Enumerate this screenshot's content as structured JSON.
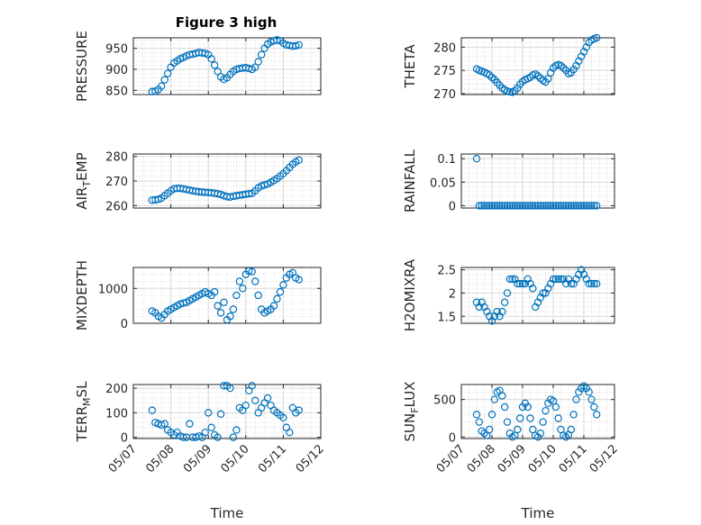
{
  "figure": {
    "title": "Figure 3 high"
  },
  "colors": {
    "marker": "#0072BD"
  },
  "chart_data": [
    {
      "type": "scatter",
      "name": "PRESSURE",
      "title": "Figure 3 high",
      "xlabel": "",
      "ylabel": "PRESSURE",
      "ylim": [
        840,
        975
      ],
      "yticks": [
        850,
        900,
        950
      ],
      "xlim": [
        "05/07",
        "05/12"
      ],
      "x": [
        "05/07 12:00",
        "05/07 14:00",
        "05/07 16:00",
        "05/07 18:00",
        "05/07 20:00",
        "05/07 22:00",
        "05/08 00:00",
        "05/08 02:00",
        "05/08 04:00",
        "05/08 06:00",
        "05/08 08:00",
        "05/08 10:00",
        "05/08 12:00",
        "05/08 14:00",
        "05/08 16:00",
        "05/08 18:00",
        "05/08 20:00",
        "05/08 22:00",
        "05/09 00:00",
        "05/09 02:00",
        "05/09 04:00",
        "05/09 06:00",
        "05/09 08:00",
        "05/09 10:00",
        "05/09 12:00",
        "05/09 14:00",
        "05/09 16:00",
        "05/09 18:00",
        "05/09 20:00",
        "05/09 22:00",
        "05/10 00:00",
        "05/10 02:00",
        "05/10 04:00",
        "05/10 06:00",
        "05/10 08:00",
        "05/10 10:00",
        "05/10 12:00",
        "05/10 14:00",
        "05/10 16:00",
        "05/10 18:00",
        "05/10 20:00",
        "05/10 22:00",
        "05/11 00:00",
        "05/11 02:00",
        "05/11 04:00",
        "05/11 06:00",
        "05/11 08:00",
        "05/11 10:00"
      ],
      "values": [
        847,
        848,
        852,
        860,
        875,
        890,
        905,
        915,
        920,
        925,
        928,
        932,
        935,
        936,
        938,
        940,
        939,
        938,
        935,
        925,
        910,
        895,
        882,
        876,
        880,
        888,
        895,
        900,
        902,
        903,
        904,
        902,
        900,
        905,
        918,
        935,
        950,
        960,
        965,
        968,
        970,
        968,
        962,
        958,
        957,
        955,
        956,
        958
      ]
    },
    {
      "type": "scatter",
      "name": "THETA",
      "title": "",
      "xlabel": "",
      "ylabel": "THETA",
      "ylim": [
        269.8,
        282
      ],
      "yticks": [
        270,
        275,
        280
      ],
      "xlim": [
        "05/07",
        "05/12"
      ],
      "x": [
        "05/07 12:00",
        "05/07 14:00",
        "05/07 16:00",
        "05/07 18:00",
        "05/07 20:00",
        "05/07 22:00",
        "05/08 00:00",
        "05/08 02:00",
        "05/08 04:00",
        "05/08 06:00",
        "05/08 08:00",
        "05/08 10:00",
        "05/08 12:00",
        "05/08 14:00",
        "05/08 16:00",
        "05/08 18:00",
        "05/08 20:00",
        "05/08 22:00",
        "05/09 00:00",
        "05/09 02:00",
        "05/09 04:00",
        "05/09 06:00",
        "05/09 08:00",
        "05/09 10:00",
        "05/09 12:00",
        "05/09 14:00",
        "05/09 16:00",
        "05/09 18:00",
        "05/09 20:00",
        "05/09 22:00",
        "05/10 00:00",
        "05/10 02:00",
        "05/10 04:00",
        "05/10 06:00",
        "05/10 08:00",
        "05/10 10:00",
        "05/10 12:00",
        "05/10 14:00",
        "05/10 16:00",
        "05/10 18:00",
        "05/10 20:00",
        "05/10 22:00",
        "05/11 00:00",
        "05/11 02:00",
        "05/11 04:00",
        "05/11 06:00",
        "05/11 08:00",
        "05/11 10:00"
      ],
      "values": [
        275.3,
        275.0,
        274.8,
        274.6,
        274.3,
        274.0,
        273.5,
        273.0,
        272.4,
        271.8,
        271.2,
        270.8,
        270.5,
        270.4,
        270.3,
        270.6,
        271.2,
        272.0,
        272.6,
        273.0,
        273.2,
        273.5,
        274.0,
        274.2,
        273.8,
        273.3,
        272.8,
        272.5,
        273.2,
        274.5,
        275.5,
        276.0,
        276.2,
        276.0,
        275.5,
        275.0,
        274.3,
        274.5,
        275.2,
        276.0,
        277.0,
        278.0,
        279.0,
        280.0,
        281.0,
        281.5,
        281.8,
        282.0
      ]
    },
    {
      "type": "scatter",
      "name": "AIR_TEMP",
      "title": "",
      "xlabel": "",
      "ylabel": "AIR_TEMP",
      "ylim": [
        259,
        281
      ],
      "yticks": [
        260,
        270,
        280
      ],
      "xlim": [
        "05/07",
        "05/12"
      ],
      "x": [
        "05/07 12:00",
        "05/07 14:00",
        "05/07 16:00",
        "05/07 18:00",
        "05/07 20:00",
        "05/07 22:00",
        "05/08 00:00",
        "05/08 02:00",
        "05/08 04:00",
        "05/08 06:00",
        "05/08 08:00",
        "05/08 10:00",
        "05/08 12:00",
        "05/08 14:00",
        "05/08 16:00",
        "05/08 18:00",
        "05/08 20:00",
        "05/08 22:00",
        "05/09 00:00",
        "05/09 02:00",
        "05/09 04:00",
        "05/09 06:00",
        "05/09 08:00",
        "05/09 10:00",
        "05/09 12:00",
        "05/09 14:00",
        "05/09 16:00",
        "05/09 18:00",
        "05/09 20:00",
        "05/09 22:00",
        "05/10 00:00",
        "05/10 02:00",
        "05/10 04:00",
        "05/10 06:00",
        "05/10 08:00",
        "05/10 10:00",
        "05/10 12:00",
        "05/10 14:00",
        "05/10 16:00",
        "05/10 18:00",
        "05/10 20:00",
        "05/10 22:00",
        "05/11 00:00",
        "05/11 02:00",
        "05/11 04:00",
        "05/11 06:00",
        "05/11 08:00",
        "05/11 10:00"
      ],
      "values": [
        262.2,
        262.3,
        262.5,
        263.0,
        264.0,
        265.0,
        266.0,
        266.8,
        267.0,
        267.0,
        266.8,
        266.5,
        266.3,
        266.0,
        265.8,
        265.6,
        265.5,
        265.4,
        265.3,
        265.2,
        265.0,
        264.8,
        264.5,
        264.0,
        263.6,
        263.5,
        263.8,
        264.0,
        264.2,
        264.4,
        264.6,
        264.8,
        265.0,
        266.0,
        267.2,
        268.0,
        268.4,
        268.8,
        269.5,
        270.2,
        271.0,
        272.0,
        273.0,
        274.2,
        275.5,
        276.8,
        277.8,
        278.5
      ]
    },
    {
      "type": "scatter",
      "name": "RAINFALL",
      "title": "",
      "xlabel": "",
      "ylabel": "RAINFALL",
      "ylim": [
        -0.005,
        0.11
      ],
      "yticks": [
        0,
        0.05,
        0.1
      ],
      "ytick_labels": [
        "0",
        "0.05",
        "0.1"
      ],
      "xlim": [
        "05/07",
        "05/12"
      ],
      "x": [
        "05/07 12:00",
        "05/07 14:00",
        "05/07 16:00",
        "05/07 18:00",
        "05/07 20:00",
        "05/07 22:00",
        "05/08 00:00",
        "05/08 02:00",
        "05/08 04:00",
        "05/08 06:00",
        "05/08 08:00",
        "05/08 10:00",
        "05/08 12:00",
        "05/08 14:00",
        "05/08 16:00",
        "05/08 18:00",
        "05/08 20:00",
        "05/08 22:00",
        "05/09 00:00",
        "05/09 02:00",
        "05/09 04:00",
        "05/09 06:00",
        "05/09 08:00",
        "05/09 10:00",
        "05/09 12:00",
        "05/09 14:00",
        "05/09 16:00",
        "05/09 18:00",
        "05/09 20:00",
        "05/09 22:00",
        "05/10 00:00",
        "05/10 02:00",
        "05/10 04:00",
        "05/10 06:00",
        "05/10 08:00",
        "05/10 10:00",
        "05/10 12:00",
        "05/10 14:00",
        "05/10 16:00",
        "05/10 18:00",
        "05/10 20:00",
        "05/10 22:00",
        "05/11 00:00",
        "05/11 02:00",
        "05/11 04:00",
        "05/11 06:00",
        "05/11 08:00",
        "05/11 10:00"
      ],
      "values": [
        0.1,
        0,
        0,
        0,
        0,
        0,
        0,
        0,
        0,
        0,
        0,
        0,
        0,
        0,
        0,
        0,
        0,
        0,
        0,
        0,
        0,
        0,
        0,
        0,
        0,
        0,
        0,
        0,
        0,
        0,
        0,
        0,
        0,
        0,
        0,
        0,
        0,
        0,
        0,
        0,
        0,
        0,
        0,
        0,
        0,
        0,
        0,
        0
      ]
    },
    {
      "type": "scatter",
      "name": "MIXDEPTH",
      "title": "",
      "xlabel": "",
      "ylabel": "MIXDEPTH",
      "ylim": [
        0,
        1600
      ],
      "yticks": [
        0,
        1000
      ],
      "xlim": [
        "05/07",
        "05/12"
      ],
      "x": [
        "05/07 12:00",
        "05/07 14:00",
        "05/07 16:00",
        "05/07 18:00",
        "05/07 20:00",
        "05/07 22:00",
        "05/08 00:00",
        "05/08 02:00",
        "05/08 04:00",
        "05/08 06:00",
        "05/08 08:00",
        "05/08 10:00",
        "05/08 12:00",
        "05/08 14:00",
        "05/08 16:00",
        "05/08 18:00",
        "05/08 20:00",
        "05/08 22:00",
        "05/09 00:00",
        "05/09 02:00",
        "05/09 04:00",
        "05/09 06:00",
        "05/09 08:00",
        "05/09 10:00",
        "05/09 12:00",
        "05/09 14:00",
        "05/09 16:00",
        "05/09 18:00",
        "05/09 20:00",
        "05/09 22:00",
        "05/10 00:00",
        "05/10 02:00",
        "05/10 04:00",
        "05/10 06:00",
        "05/10 08:00",
        "05/10 10:00",
        "05/10 12:00",
        "05/10 14:00",
        "05/10 16:00",
        "05/10 18:00",
        "05/10 20:00",
        "05/10 22:00",
        "05/11 00:00",
        "05/11 02:00",
        "05/11 04:00",
        "05/11 06:00",
        "05/11 08:00",
        "05/11 10:00"
      ],
      "values": [
        350,
        300,
        200,
        150,
        250,
        350,
        400,
        450,
        500,
        550,
        580,
        600,
        650,
        700,
        750,
        800,
        850,
        900,
        850,
        800,
        900,
        500,
        300,
        600,
        100,
        200,
        400,
        800,
        1200,
        1000,
        1400,
        1500,
        1480,
        1200,
        800,
        400,
        300,
        350,
        400,
        500,
        700,
        900,
        1100,
        1300,
        1400,
        1450,
        1300,
        1250
      ]
    },
    {
      "type": "scatter",
      "name": "H2OMIXRA",
      "title": "",
      "xlabel": "",
      "ylabel": "H2OMIXRA",
      "ylim": [
        1.35,
        2.55
      ],
      "yticks": [
        1.5,
        2,
        2.5
      ],
      "ytick_labels": [
        "1.5",
        "2",
        "2.5"
      ],
      "xlim": [
        "05/07",
        "05/12"
      ],
      "x": [
        "05/07 12:00",
        "05/07 14:00",
        "05/07 16:00",
        "05/07 18:00",
        "05/07 20:00",
        "05/07 22:00",
        "05/08 00:00",
        "05/08 02:00",
        "05/08 04:00",
        "05/08 06:00",
        "05/08 08:00",
        "05/08 10:00",
        "05/08 12:00",
        "05/08 14:00",
        "05/08 16:00",
        "05/08 18:00",
        "05/08 20:00",
        "05/08 22:00",
        "05/09 00:00",
        "05/09 02:00",
        "05/09 04:00",
        "05/09 06:00",
        "05/09 08:00",
        "05/09 10:00",
        "05/09 12:00",
        "05/09 14:00",
        "05/09 16:00",
        "05/09 18:00",
        "05/09 20:00",
        "05/09 22:00",
        "05/10 00:00",
        "05/10 02:00",
        "05/10 04:00",
        "05/10 06:00",
        "05/10 08:00",
        "05/10 10:00",
        "05/10 12:00",
        "05/10 14:00",
        "05/10 16:00",
        "05/10 18:00",
        "05/10 20:00",
        "05/10 22:00",
        "05/11 00:00",
        "05/11 02:00",
        "05/11 04:00",
        "05/11 06:00",
        "05/11 08:00",
        "05/11 10:00"
      ],
      "values": [
        1.8,
        1.7,
        1.8,
        1.7,
        1.6,
        1.5,
        1.4,
        1.5,
        1.6,
        1.5,
        1.6,
        1.8,
        2.0,
        2.3,
        2.3,
        2.3,
        2.2,
        2.2,
        2.2,
        2.2,
        2.3,
        2.2,
        2.1,
        1.7,
        1.8,
        1.9,
        2.0,
        2.0,
        2.1,
        2.2,
        2.3,
        2.3,
        2.3,
        2.3,
        2.3,
        2.2,
        2.3,
        2.2,
        2.2,
        2.3,
        2.4,
        2.5,
        2.4,
        2.3,
        2.2,
        2.2,
        2.2,
        2.2
      ]
    },
    {
      "type": "scatter",
      "name": "TERR_MSL",
      "title": "",
      "xlabel": "Time",
      "ylabel": "TERR_MSL",
      "ylim": [
        -5,
        215
      ],
      "yticks": [
        0,
        100,
        200
      ],
      "xlim": [
        "05/07",
        "05/12"
      ],
      "xticks": [
        "05/07",
        "05/08",
        "05/09",
        "05/10",
        "05/11",
        "05/12"
      ],
      "x": [
        "05/07 12:00",
        "05/07 14:00",
        "05/07 16:00",
        "05/07 18:00",
        "05/07 20:00",
        "05/07 22:00",
        "05/08 00:00",
        "05/08 02:00",
        "05/08 04:00",
        "05/08 06:00",
        "05/08 08:00",
        "05/08 10:00",
        "05/08 12:00",
        "05/08 14:00",
        "05/08 16:00",
        "05/08 18:00",
        "05/08 20:00",
        "05/08 22:00",
        "05/09 00:00",
        "05/09 02:00",
        "05/09 04:00",
        "05/09 06:00",
        "05/09 08:00",
        "05/09 10:00",
        "05/09 12:00",
        "05/09 14:00",
        "05/09 16:00",
        "05/09 18:00",
        "05/09 20:00",
        "05/09 22:00",
        "05/10 00:00",
        "05/10 02:00",
        "05/10 04:00",
        "05/10 06:00",
        "05/10 08:00",
        "05/10 10:00",
        "05/10 12:00",
        "05/10 14:00",
        "05/10 16:00",
        "05/10 18:00",
        "05/10 20:00",
        "05/10 22:00",
        "05/11 00:00",
        "05/11 02:00",
        "05/11 04:00",
        "05/11 06:00",
        "05/11 08:00",
        "05/11 10:00"
      ],
      "values": [
        110,
        60,
        55,
        50,
        55,
        30,
        20,
        10,
        20,
        5,
        0,
        0,
        55,
        0,
        0,
        5,
        0,
        20,
        100,
        40,
        10,
        0,
        95,
        210,
        210,
        200,
        0,
        30,
        120,
        110,
        130,
        190,
        210,
        150,
        100,
        120,
        140,
        160,
        130,
        110,
        100,
        90,
        80,
        40,
        20,
        120,
        100,
        110
      ]
    },
    {
      "type": "scatter",
      "name": "SUN_FLUX",
      "title": "",
      "xlabel": "Time",
      "ylabel": "SUN_FLUX",
      "ylim": [
        -20,
        700
      ],
      "yticks": [
        0,
        500
      ],
      "xlim": [
        "05/07",
        "05/12"
      ],
      "xticks": [
        "05/07",
        "05/08",
        "05/09",
        "05/10",
        "05/11",
        "05/12"
      ],
      "x": [
        "05/07 12:00",
        "05/07 14:00",
        "05/07 16:00",
        "05/07 18:00",
        "05/07 20:00",
        "05/07 22:00",
        "05/08 00:00",
        "05/08 02:00",
        "05/08 04:00",
        "05/08 06:00",
        "05/08 08:00",
        "05/08 10:00",
        "05/08 12:00",
        "05/08 14:00",
        "05/08 16:00",
        "05/08 18:00",
        "05/08 20:00",
        "05/08 22:00",
        "05/09 00:00",
        "05/09 02:00",
        "05/09 04:00",
        "05/09 06:00",
        "05/09 08:00",
        "05/09 10:00",
        "05/09 12:00",
        "05/09 14:00",
        "05/09 16:00",
        "05/09 18:00",
        "05/09 20:00",
        "05/09 22:00",
        "05/10 00:00",
        "05/10 02:00",
        "05/10 04:00",
        "05/10 06:00",
        "05/10 08:00",
        "05/10 10:00",
        "05/10 12:00",
        "05/10 14:00",
        "05/10 16:00",
        "05/10 18:00",
        "05/10 20:00",
        "05/10 22:00",
        "05/11 00:00",
        "05/11 02:00",
        "05/11 04:00",
        "05/11 06:00",
        "05/11 08:00",
        "05/11 10:00"
      ],
      "values": [
        300,
        200,
        80,
        50,
        20,
        100,
        300,
        500,
        600,
        620,
        550,
        400,
        200,
        50,
        0,
        20,
        100,
        250,
        400,
        450,
        400,
        250,
        100,
        20,
        0,
        50,
        200,
        350,
        450,
        500,
        480,
        400,
        250,
        100,
        20,
        0,
        30,
        100,
        300,
        500,
        600,
        650,
        680,
        650,
        600,
        500,
        400,
        300
      ]
    }
  ]
}
